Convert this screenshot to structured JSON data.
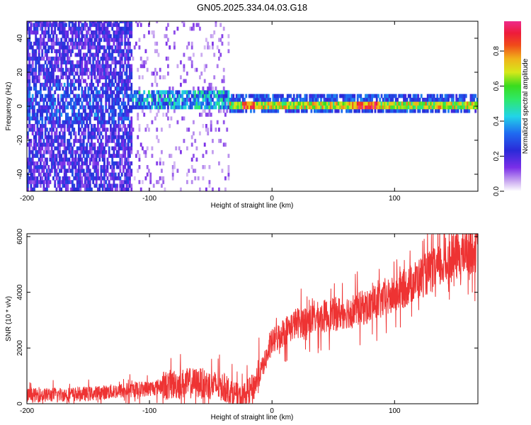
{
  "title": "GN05.2025.334.04.03.G18",
  "chart_data": [
    {
      "type": "heatmap",
      "title": "GN05.2025.334.04.03.G18",
      "xlabel": "Height of straight line (km)",
      "ylabel": "Frequency (Hz)",
      "xlim": [
        -200,
        168
      ],
      "ylim": [
        -50,
        50
      ],
      "x_ticks": [
        "-200",
        "-100",
        "0",
        "100"
      ],
      "y_ticks": [
        "-40",
        "-20",
        "0",
        "20",
        "40"
      ],
      "colorbar": {
        "label": "Normalized spectral amplitude",
        "range": [
          0,
          0.97
        ],
        "ticks": [
          "0.0",
          "0.2",
          "0.4",
          "0.6",
          "0.8"
        ],
        "colormap": "rainbow (white→purple→blue→cyan→green→yellow→red→magenta)"
      },
      "features": [
        {
          "x_range": [
            -200,
            -115
          ],
          "description": "broad purple/blue noise spread over all frequencies"
        },
        {
          "x_range": [
            -115,
            -35
          ],
          "description": "sparse light-purple noise with blue-green cluster near 0 to 10 Hz"
        },
        {
          "x_range": [
            -35,
            168
          ],
          "description": "narrow band centered near 0 Hz with green/yellow/red peak amplitude"
        }
      ],
      "grid": false
    },
    {
      "type": "line",
      "xlabel": "Height of straight line (km)",
      "ylabel": "SNR (10 * v/v)",
      "xlim": [
        -200,
        168
      ],
      "ylim": [
        0,
        6100
      ],
      "x_ticks": [
        "-200",
        "-100",
        "0",
        "100"
      ],
      "y_ticks": [
        "0",
        "2000",
        "4000",
        "6000"
      ],
      "color": "#ee3333",
      "trend": {
        "x": [
          -200,
          -150,
          -120,
          -100,
          -80,
          -60,
          -40,
          -25,
          -15,
          -5,
          0,
          10,
          20,
          40,
          60,
          80,
          90,
          100,
          120,
          140,
          160,
          168
        ],
        "y": [
          300,
          350,
          480,
          550,
          700,
          750,
          600,
          200,
          600,
          1600,
          2200,
          2600,
          2900,
          3100,
          3300,
          3500,
          3700,
          3900,
          4500,
          5000,
          5500,
          5600
        ]
      },
      "grid": false
    }
  ]
}
